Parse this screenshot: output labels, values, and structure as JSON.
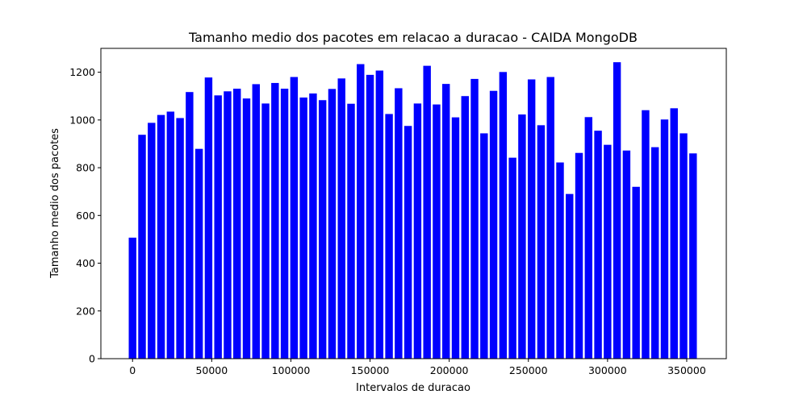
{
  "chart_data": {
    "type": "bar",
    "title": "Tamanho medio dos pacotes em relacao a duracao - CAIDA MongoDB",
    "xlabel": "Intervalos de duracao",
    "ylabel": "Tamanho medio dos pacotes",
    "xlim": [
      -20000,
      375000
    ],
    "ylim": [
      0,
      1300
    ],
    "xticks": [
      0,
      50000,
      100000,
      150000,
      200000,
      250000,
      300000,
      350000
    ],
    "yticks": [
      0,
      200,
      400,
      600,
      800,
      1000,
      1200
    ],
    "bar_width": 4800,
    "bar_color": "#0000ff",
    "grid": false,
    "x": [
      0,
      6000,
      12000,
      18000,
      24000,
      30000,
      36000,
      42000,
      48000,
      54000,
      60000,
      66000,
      72000,
      78000,
      84000,
      90000,
      96000,
      102000,
      108000,
      114000,
      120000,
      126000,
      132000,
      138000,
      144000,
      150000,
      156000,
      162000,
      168000,
      174000,
      180000,
      186000,
      192000,
      198000,
      204000,
      210000,
      216000,
      222000,
      228000,
      234000,
      240000,
      246000,
      252000,
      258000,
      264000,
      270000,
      276000,
      282000,
      288000,
      294000,
      300000,
      306000,
      312000,
      318000,
      324000,
      330000,
      336000,
      342000,
      348000,
      354000
    ],
    "values": [
      507,
      938,
      988,
      1021,
      1035,
      1008,
      1117,
      879,
      1178,
      1103,
      1120,
      1131,
      1090,
      1150,
      1069,
      1155,
      1131,
      1180,
      1094,
      1111,
      1083,
      1130,
      1174,
      1068,
      1234,
      1189,
      1207,
      1025,
      1133,
      975,
      1069,
      1227,
      1065,
      1151,
      1011,
      1100,
      1172,
      944,
      1122,
      1201,
      842,
      1023,
      1170,
      978,
      1180,
      822,
      690,
      862,
      1012,
      955,
      896,
      1242,
      872,
      720,
      1041,
      886,
      1002,
      1049,
      944,
      860
    ]
  }
}
